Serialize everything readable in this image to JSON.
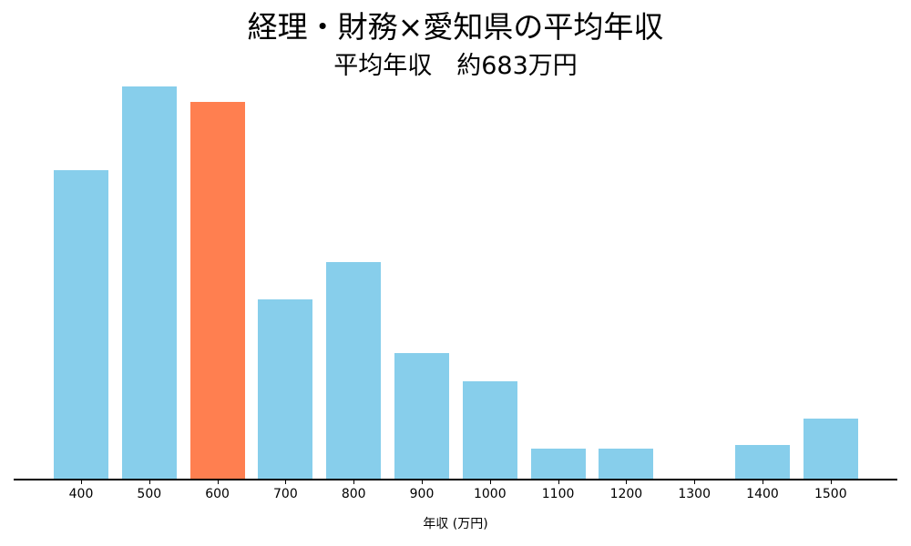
{
  "title": "経理・財務×愛知県の平均年収",
  "subtitle": "平均年収　約683万円",
  "chart_data": {
    "type": "bar",
    "title": "経理・財務×愛知県の平均年収",
    "subtitle": "平均年収　約683万円",
    "xlabel": "年収 (万円)",
    "ylabel": "",
    "categories": [
      "400",
      "500",
      "600",
      "700",
      "800",
      "900",
      "1000",
      "1100",
      "1200",
      "1300",
      "1400",
      "1500"
    ],
    "values": [
      340,
      432,
      415,
      198,
      239,
      139,
      108,
      34,
      34,
      0,
      38,
      67
    ],
    "value_note": "relative heights (y-axis hidden)",
    "highlight_category": "600",
    "colors": {
      "default": "#87CEEB",
      "highlight": "#FF7F50"
    },
    "grid": false,
    "legend": null,
    "ylim": [
      0,
      447
    ]
  }
}
